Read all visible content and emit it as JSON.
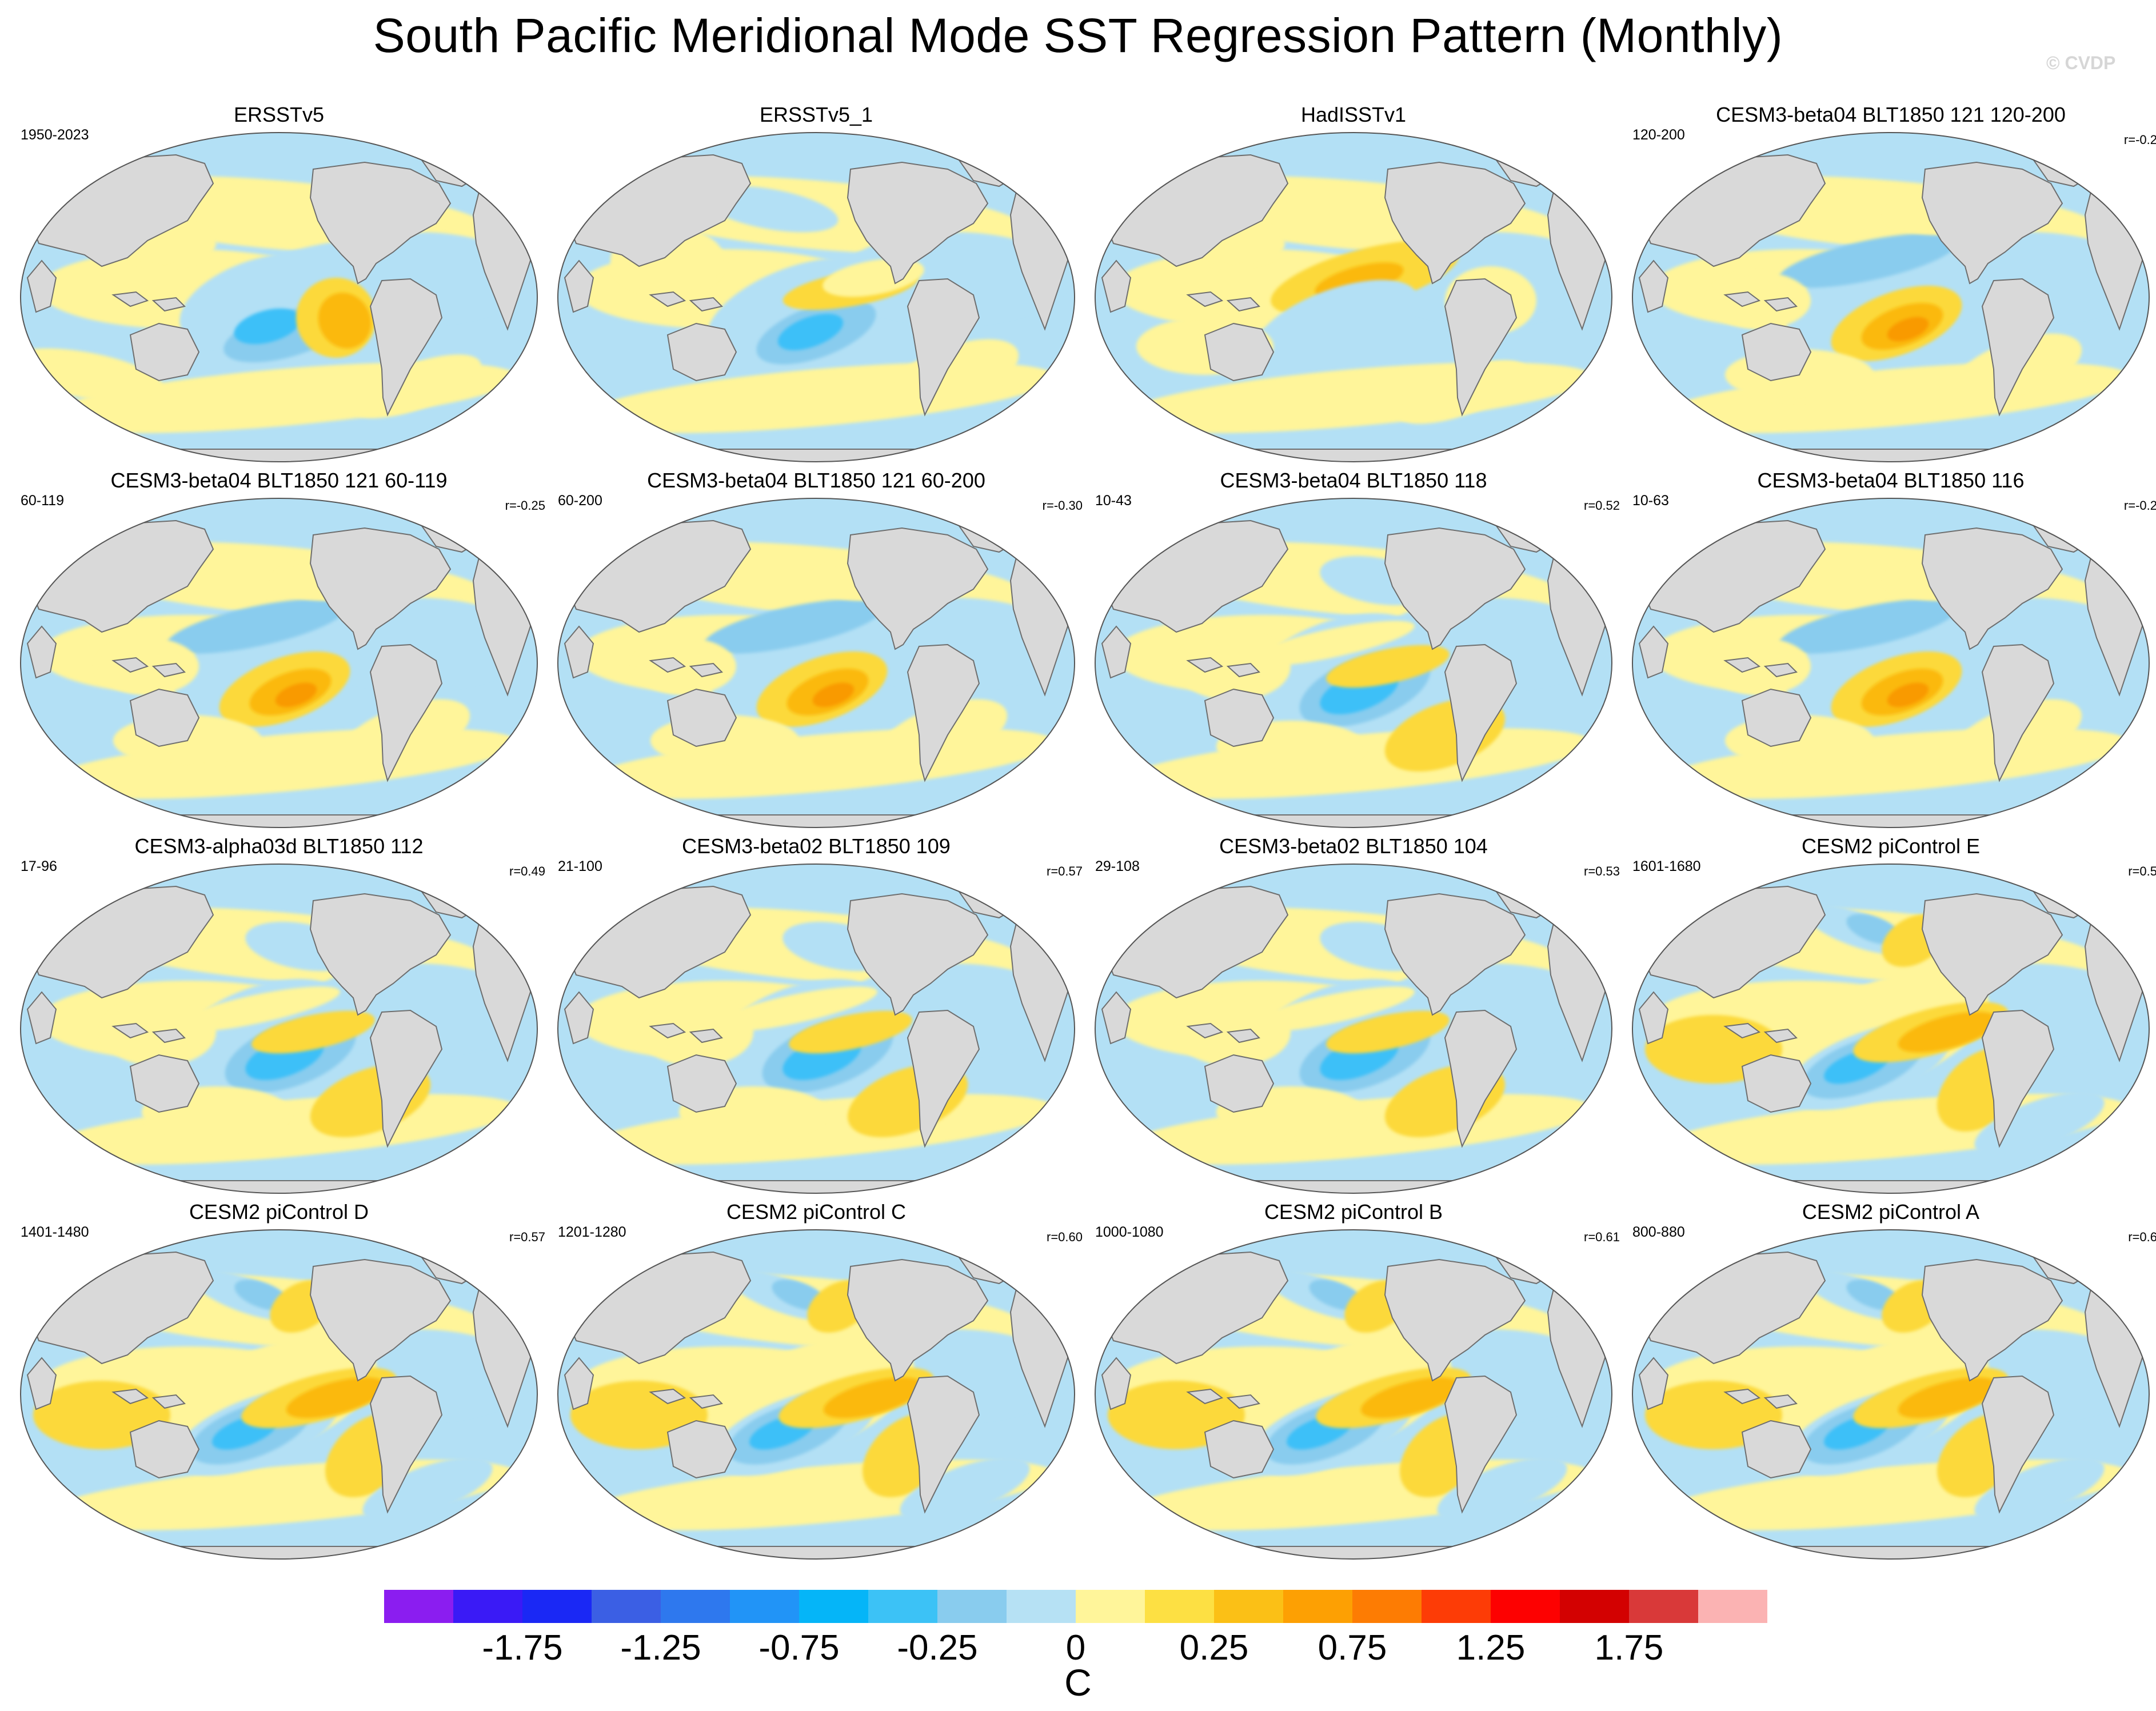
{
  "title": "South Pacific Meridional Mode SST Regression Pattern (Monthly)",
  "watermark": "© CVDP",
  "colors": {
    "land": "#d9d9d9",
    "coast": "#6e6e6e",
    "neg_weak": "#b3e0f5",
    "neg_mid": "#89ccee",
    "neg_strong": "#3cc0f8",
    "pos_weak": "#fff59a",
    "pos_mid": "#fcd93b",
    "pos_strong": "#fbb90e",
    "pos_orange": "#f99a03"
  },
  "panels": [
    {
      "title": "ERSSTv5",
      "years": "1950-2023",
      "r": "",
      "pattern": "obs"
    },
    {
      "title": "ERSSTv5_1",
      "years": "",
      "r": "",
      "pattern": "obs_neg"
    },
    {
      "title": "HadISSTv1",
      "years": "",
      "r": "",
      "pattern": "had"
    },
    {
      "title": "CESM3-beta04 BLT1850 121 120-200",
      "years": "120-200",
      "r": "r=-0.2",
      "pattern": "pos"
    },
    {
      "title": "CESM3-beta04 BLT1850 121 60-119",
      "years": "60-119",
      "r": "r=-0.25",
      "pattern": "pos"
    },
    {
      "title": "CESM3-beta04 BLT1850 121 60-200",
      "years": "60-200",
      "r": "r=-0.30",
      "pattern": "pos"
    },
    {
      "title": "CESM3-beta04 BLT1850 118",
      "years": "10-43",
      "r": "r=0.52",
      "pattern": "neg"
    },
    {
      "title": "CESM3-beta04 BLT1850 116",
      "years": "10-63",
      "r": "r=-0.2",
      "pattern": "pos"
    },
    {
      "title": "CESM3-alpha03d BLT1850 112",
      "years": "17-96",
      "r": "r=0.49",
      "pattern": "neg"
    },
    {
      "title": "CESM3-beta02 BLT1850 109",
      "years": "21-100",
      "r": "r=0.57",
      "pattern": "neg"
    },
    {
      "title": "CESM3-beta02 BLT1850 104",
      "years": "29-108",
      "r": "r=0.53",
      "pattern": "neg"
    },
    {
      "title": "CESM2 piControl E",
      "years": "1601-1680",
      "r": "r=0.5",
      "pattern": "pi"
    },
    {
      "title": "CESM2 piControl D",
      "years": "1401-1480",
      "r": "r=0.57",
      "pattern": "pi"
    },
    {
      "title": "CESM2 piControl C",
      "years": "1201-1280",
      "r": "r=0.60",
      "pattern": "pi"
    },
    {
      "title": "CESM2 piControl B",
      "years": "1000-1080",
      "r": "r=0.61",
      "pattern": "pi"
    },
    {
      "title": "CESM2 piControl A",
      "years": "800-880",
      "r": "r=0.6",
      "pattern": "pi"
    }
  ],
  "colorbar": {
    "colors": [
      "#8b1df0",
      "#3a1af6",
      "#1a28f5",
      "#3b5fe4",
      "#2e78ee",
      "#2194f7",
      "#05b5f8",
      "#3cc2f6",
      "#89ccee",
      "#b6e1f4",
      "#fff59a",
      "#fde043",
      "#fbc016",
      "#fda003",
      "#fd7c03",
      "#fd3c06",
      "#fd0101",
      "#d30101",
      "#d93939",
      "#fbb3b3"
    ],
    "tick_labels": [
      "-1.75",
      "-1.25",
      "-0.75",
      "-0.25",
      "0",
      "0.25",
      "0.75",
      "1.25",
      "1.75"
    ],
    "label": "C"
  }
}
